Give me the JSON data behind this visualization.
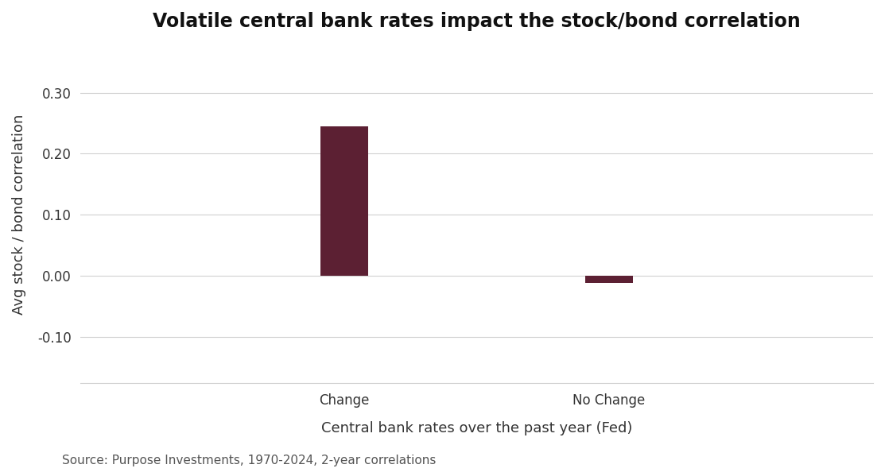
{
  "title": "Volatile central bank rates impact the stock/bond correlation",
  "categories": [
    "Change",
    "No Change"
  ],
  "values": [
    0.245,
    -0.012
  ],
  "bar_color": "#5C2033",
  "bar_width": 0.18,
  "xlabel": "Central bank rates over the past year (Fed)",
  "ylabel": "Avg stock / bond correlation",
  "ylim": [
    -0.175,
    0.375
  ],
  "yticks": [
    -0.1,
    0.0,
    0.1,
    0.2,
    0.3
  ],
  "ytick_labels": [
    "-0.10",
    "0.00",
    "0.10",
    "0.20",
    "0.30"
  ],
  "source_text": "Source: Purpose Investments, 1970-2024, 2-year correlations",
  "title_fontsize": 17,
  "label_fontsize": 13,
  "tick_fontsize": 12,
  "source_fontsize": 11,
  "background_color": "#ffffff",
  "grid_color": "#d0d0d0",
  "xlim": [
    0.0,
    3.0
  ],
  "bar_positions": [
    1.0,
    2.0
  ]
}
